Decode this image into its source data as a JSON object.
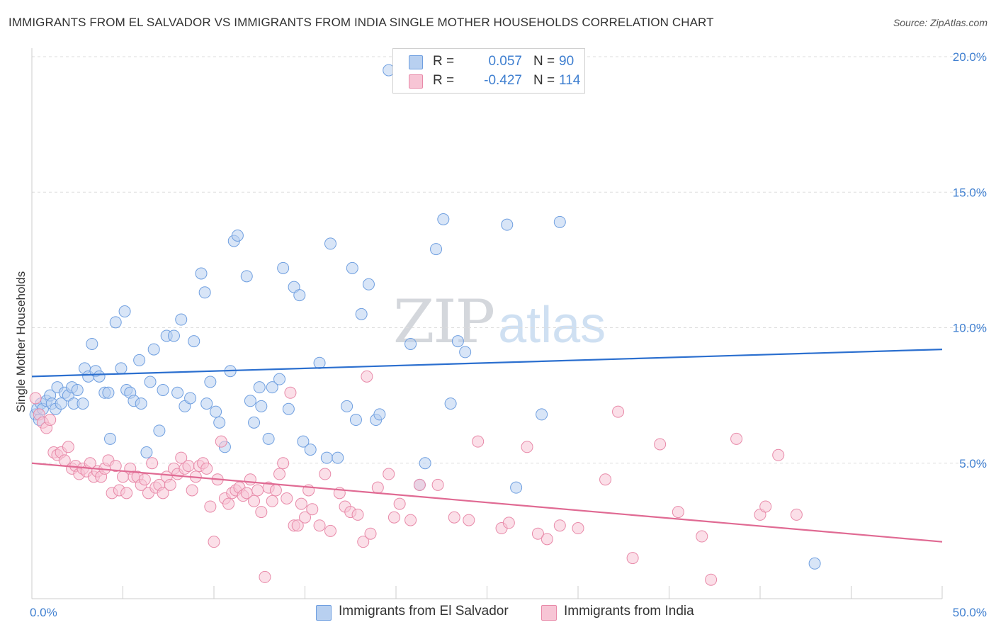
{
  "title": "IMMIGRANTS FROM EL SALVADOR VS IMMIGRANTS FROM INDIA SINGLE MOTHER HOUSEHOLDS CORRELATION CHART",
  "source": "Source: ZipAtlas.com",
  "watermark": {
    "part1": "ZIP",
    "part2": "atlas"
  },
  "legend": {
    "rows": [
      {
        "r_label": "R =",
        "r_value": "0.057",
        "n_label": "N =",
        "n_value": "90",
        "color": "#6f9fe0",
        "fill": "#b8d0f0"
      },
      {
        "r_label": "R =",
        "r_value": "-0.427",
        "n_label": "N =",
        "n_value": "114",
        "color": "#e88aa9",
        "fill": "#f7c5d5"
      }
    ]
  },
  "bottom_legend": {
    "items": [
      {
        "label": "Immigrants from El Salvador",
        "color": "#6f9fe0",
        "fill": "#b8d0f0"
      },
      {
        "label": "Immigrants from India",
        "color": "#e88aa9",
        "fill": "#f7c5d5"
      }
    ]
  },
  "chart_data": {
    "type": "scatter",
    "ylabel": "Single Mother Households",
    "xlabel": "",
    "xlim": [
      0,
      50
    ],
    "ylim": [
      0,
      20
    ],
    "x_tick_labels": [
      {
        "value": 0,
        "label": "0.0%"
      },
      {
        "value": 50,
        "label": "50.0%"
      }
    ],
    "y_tick_labels": [
      {
        "value": 5,
        "label": "5.0%"
      },
      {
        "value": 10,
        "label": "10.0%"
      },
      {
        "value": 15,
        "label": "15.0%"
      },
      {
        "value": 20,
        "label": "20.0%"
      }
    ],
    "grid": "horizontal dashed",
    "legend_position": "top-center",
    "series": [
      {
        "name": "Immigrants from El Salvador",
        "color": "#6f9fe0",
        "fill": "#b8d0f0",
        "trend": {
          "x": [
            0,
            50
          ],
          "y": [
            8.2,
            9.2
          ]
        },
        "points": [
          [
            0.2,
            6.8
          ],
          [
            0.3,
            7.0
          ],
          [
            0.4,
            6.6
          ],
          [
            0.5,
            7.2
          ],
          [
            0.6,
            7.0
          ],
          [
            0.8,
            7.3
          ],
          [
            1.0,
            7.5
          ],
          [
            1.1,
            7.2
          ],
          [
            1.3,
            7.0
          ],
          [
            1.4,
            7.8
          ],
          [
            1.6,
            7.2
          ],
          [
            1.8,
            7.6
          ],
          [
            2.0,
            7.5
          ],
          [
            2.2,
            7.8
          ],
          [
            2.3,
            7.2
          ],
          [
            2.5,
            7.7
          ],
          [
            2.8,
            7.2
          ],
          [
            2.9,
            8.5
          ],
          [
            3.1,
            8.2
          ],
          [
            3.3,
            9.4
          ],
          [
            3.5,
            8.4
          ],
          [
            3.7,
            8.2
          ],
          [
            4.0,
            7.6
          ],
          [
            4.2,
            7.6
          ],
          [
            4.3,
            5.9
          ],
          [
            4.6,
            10.2
          ],
          [
            4.9,
            8.5
          ],
          [
            5.1,
            10.6
          ],
          [
            5.2,
            7.7
          ],
          [
            5.4,
            7.6
          ],
          [
            5.6,
            7.3
          ],
          [
            5.9,
            8.8
          ],
          [
            6.0,
            7.2
          ],
          [
            6.3,
            5.4
          ],
          [
            6.5,
            8.0
          ],
          [
            6.7,
            9.2
          ],
          [
            7.0,
            6.2
          ],
          [
            7.2,
            7.7
          ],
          [
            7.4,
            9.7
          ],
          [
            7.8,
            9.7
          ],
          [
            8.0,
            7.6
          ],
          [
            8.2,
            10.3
          ],
          [
            8.4,
            7.1
          ],
          [
            8.7,
            7.4
          ],
          [
            8.9,
            9.5
          ],
          [
            9.3,
            12.0
          ],
          [
            9.5,
            11.3
          ],
          [
            9.6,
            7.2
          ],
          [
            9.8,
            8.0
          ],
          [
            10.1,
            6.9
          ],
          [
            10.3,
            6.5
          ],
          [
            10.6,
            5.6
          ],
          [
            10.9,
            8.4
          ],
          [
            11.1,
            13.2
          ],
          [
            11.3,
            13.4
          ],
          [
            11.8,
            11.9
          ],
          [
            12.0,
            7.3
          ],
          [
            12.2,
            6.5
          ],
          [
            12.5,
            7.8
          ],
          [
            12.6,
            7.1
          ],
          [
            13.0,
            5.9
          ],
          [
            13.2,
            7.8
          ],
          [
            13.6,
            8.1
          ],
          [
            13.8,
            12.2
          ],
          [
            14.1,
            7.0
          ],
          [
            14.4,
            11.5
          ],
          [
            14.7,
            11.2
          ],
          [
            14.9,
            5.8
          ],
          [
            15.3,
            5.5
          ],
          [
            15.8,
            8.7
          ],
          [
            16.2,
            5.2
          ],
          [
            16.4,
            13.1
          ],
          [
            16.8,
            5.2
          ],
          [
            17.3,
            7.1
          ],
          [
            17.8,
            6.6
          ],
          [
            17.6,
            12.2
          ],
          [
            18.1,
            10.5
          ],
          [
            18.5,
            11.6
          ],
          [
            18.9,
            6.6
          ],
          [
            19.1,
            6.8
          ],
          [
            19.6,
            19.5
          ],
          [
            20.8,
            9.4
          ],
          [
            21.3,
            4.2
          ],
          [
            21.6,
            5.0
          ],
          [
            22.2,
            12.9
          ],
          [
            22.6,
            14.0
          ],
          [
            23.0,
            7.2
          ],
          [
            23.4,
            9.5
          ],
          [
            23.8,
            9.1
          ],
          [
            26.1,
            13.8
          ],
          [
            26.6,
            4.1
          ],
          [
            28.0,
            6.8
          ],
          [
            29.0,
            13.9
          ],
          [
            43.0,
            1.3
          ]
        ]
      },
      {
        "name": "Immigrants from India",
        "color": "#e88aa9",
        "fill": "#f7c5d5",
        "trend": {
          "x": [
            0,
            50
          ],
          "y": [
            5.0,
            2.1
          ]
        },
        "points": [
          [
            0.2,
            7.4
          ],
          [
            0.4,
            6.8
          ],
          [
            0.6,
            6.5
          ],
          [
            0.8,
            6.3
          ],
          [
            1.0,
            6.6
          ],
          [
            1.2,
            5.4
          ],
          [
            1.4,
            5.3
          ],
          [
            1.6,
            5.4
          ],
          [
            1.8,
            5.1
          ],
          [
            2.0,
            5.6
          ],
          [
            2.2,
            4.8
          ],
          [
            2.4,
            4.9
          ],
          [
            2.6,
            4.6
          ],
          [
            2.8,
            4.8
          ],
          [
            3.0,
            4.7
          ],
          [
            3.2,
            5.0
          ],
          [
            3.4,
            4.5
          ],
          [
            3.6,
            4.7
          ],
          [
            3.8,
            4.5
          ],
          [
            4.0,
            4.8
          ],
          [
            4.2,
            5.1
          ],
          [
            4.4,
            3.9
          ],
          [
            4.6,
            4.9
          ],
          [
            4.8,
            4.0
          ],
          [
            5.0,
            4.5
          ],
          [
            5.2,
            3.9
          ],
          [
            5.4,
            4.8
          ],
          [
            5.6,
            4.5
          ],
          [
            5.8,
            4.5
          ],
          [
            6.0,
            4.2
          ],
          [
            6.2,
            4.4
          ],
          [
            6.4,
            3.9
          ],
          [
            6.6,
            5.0
          ],
          [
            6.8,
            4.1
          ],
          [
            7.0,
            4.2
          ],
          [
            7.2,
            3.9
          ],
          [
            7.4,
            4.5
          ],
          [
            7.6,
            4.2
          ],
          [
            7.8,
            4.8
          ],
          [
            8.0,
            4.6
          ],
          [
            8.2,
            5.2
          ],
          [
            8.4,
            4.8
          ],
          [
            8.6,
            4.9
          ],
          [
            8.8,
            4.0
          ],
          [
            9.0,
            4.5
          ],
          [
            9.2,
            4.9
          ],
          [
            9.4,
            5.0
          ],
          [
            9.6,
            4.8
          ],
          [
            9.8,
            3.4
          ],
          [
            10.0,
            2.1
          ],
          [
            10.2,
            4.4
          ],
          [
            10.4,
            5.8
          ],
          [
            10.6,
            3.7
          ],
          [
            10.8,
            3.5
          ],
          [
            11.0,
            3.9
          ],
          [
            11.2,
            4.0
          ],
          [
            11.4,
            4.1
          ],
          [
            11.6,
            3.8
          ],
          [
            11.8,
            3.9
          ],
          [
            12.0,
            4.4
          ],
          [
            12.2,
            3.6
          ],
          [
            12.4,
            4.0
          ],
          [
            12.6,
            3.2
          ],
          [
            12.8,
            0.8
          ],
          [
            13.0,
            4.1
          ],
          [
            13.2,
            3.6
          ],
          [
            13.4,
            4.0
          ],
          [
            13.6,
            4.6
          ],
          [
            13.8,
            5.0
          ],
          [
            14.0,
            3.7
          ],
          [
            14.2,
            7.6
          ],
          [
            14.4,
            2.7
          ],
          [
            14.6,
            2.7
          ],
          [
            14.8,
            3.5
          ],
          [
            15.0,
            3.0
          ],
          [
            15.2,
            4.0
          ],
          [
            15.4,
            3.3
          ],
          [
            15.8,
            2.7
          ],
          [
            16.1,
            4.6
          ],
          [
            16.4,
            2.5
          ],
          [
            16.9,
            3.9
          ],
          [
            17.2,
            3.4
          ],
          [
            17.5,
            3.2
          ],
          [
            17.9,
            3.1
          ],
          [
            18.2,
            2.1
          ],
          [
            18.4,
            8.2
          ],
          [
            18.6,
            2.4
          ],
          [
            19.0,
            4.1
          ],
          [
            19.6,
            4.6
          ],
          [
            19.9,
            3.0
          ],
          [
            20.2,
            3.5
          ],
          [
            20.8,
            2.9
          ],
          [
            21.3,
            4.2
          ],
          [
            22.3,
            4.2
          ],
          [
            23.2,
            3.0
          ],
          [
            24.0,
            2.9
          ],
          [
            24.5,
            5.8
          ],
          [
            25.8,
            2.6
          ],
          [
            26.2,
            2.8
          ],
          [
            27.2,
            5.6
          ],
          [
            27.8,
            2.4
          ],
          [
            28.3,
            2.2
          ],
          [
            29.0,
            2.7
          ],
          [
            30.0,
            2.6
          ],
          [
            31.5,
            4.4
          ],
          [
            32.2,
            6.9
          ],
          [
            33.0,
            1.5
          ],
          [
            34.5,
            5.7
          ],
          [
            35.5,
            3.2
          ],
          [
            36.8,
            2.3
          ],
          [
            37.3,
            0.7
          ],
          [
            38.7,
            5.9
          ],
          [
            40.0,
            3.1
          ],
          [
            40.3,
            3.4
          ],
          [
            41.0,
            5.3
          ],
          [
            42.0,
            3.1
          ]
        ]
      }
    ]
  }
}
